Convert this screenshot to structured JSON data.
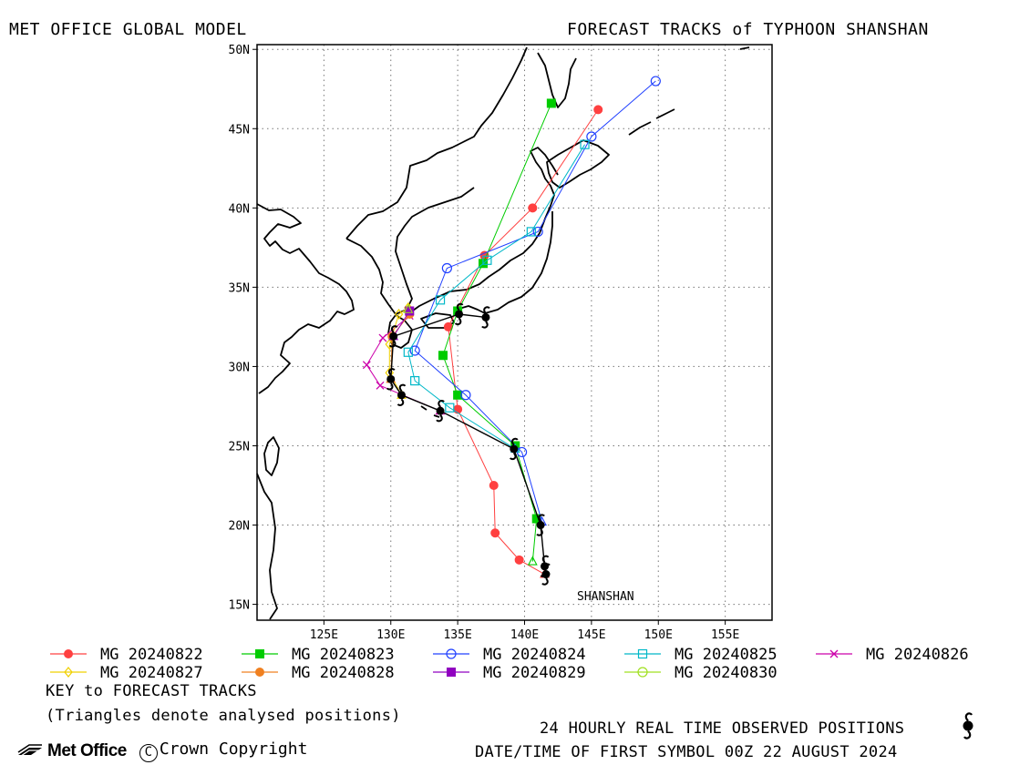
{
  "header": {
    "left": "MET OFFICE GLOBAL MODEL",
    "right": "FORECAST TRACKS of TYPHOON SHANSHAN"
  },
  "storm_label": "SHANSHAN",
  "axes": {
    "lon_range": [
      120,
      158.5
    ],
    "lat_range": [
      14,
      50.3
    ],
    "lon_ticks": [
      "125E",
      "130E",
      "135E",
      "140E",
      "145E",
      "150E",
      "155E"
    ],
    "lat_ticks": [
      "15N",
      "20N",
      "25N",
      "30N",
      "35N",
      "40N",
      "45N",
      "50N"
    ],
    "grid": true
  },
  "legend": {
    "items": [
      {
        "label": "MG 20240822",
        "color": "#ff4040",
        "marker": "filled-circle"
      },
      {
        "label": "MG 20240823",
        "color": "#00cc00",
        "marker": "filled-square"
      },
      {
        "label": "MG 20240824",
        "color": "#2040ff",
        "marker": "open-circle"
      },
      {
        "label": "MG 20240825",
        "color": "#00b8c8",
        "marker": "open-square"
      },
      {
        "label": "MG 20240826",
        "color": "#cc00aa",
        "marker": "cross"
      },
      {
        "label": "MG 20240827",
        "color": "#f0d000",
        "marker": "open-diamond"
      },
      {
        "label": "MG 20240828",
        "color": "#f08020",
        "marker": "filled-circle"
      },
      {
        "label": "MG 20240829",
        "color": "#9000c0",
        "marker": "filled-square"
      },
      {
        "label": "MG 20240830",
        "color": "#a0e020",
        "marker": "open-circle"
      }
    ],
    "key_title": "KEY to FORECAST TRACKS",
    "key_note": "(Triangles denote analysed positions)"
  },
  "footer": {
    "observed": "24 HOURLY REAL TIME OBSERVED POSITIONS",
    "first_symbol": "DATE/TIME OF FIRST SYMBOL 00Z 22 AUGUST 2024",
    "logo": "Met Office",
    "copyright": "Crown Copyright"
  },
  "chart_data": {
    "type": "scatter",
    "title": "FORECAST TRACKS of TYPHOON SHANSHAN",
    "x_unit": "longitude (deg E)",
    "y_unit": "latitude (deg N)",
    "observed_track": [
      [
        141.6,
        16.9
      ],
      [
        141.5,
        17.4
      ],
      [
        141.2,
        20.0
      ],
      [
        139.2,
        24.8
      ],
      [
        133.7,
        27.2
      ],
      [
        130.8,
        28.2
      ],
      [
        130.0,
        29.2
      ],
      [
        130.2,
        31.9
      ],
      [
        135.1,
        33.3
      ],
      [
        137.1,
        33.1
      ]
    ],
    "series": [
      {
        "name": "MG 20240822",
        "points": [
          [
            141.5,
            16.9
          ],
          [
            139.6,
            17.8
          ],
          [
            137.8,
            19.5
          ],
          [
            137.7,
            22.5
          ],
          [
            135.0,
            27.3
          ],
          [
            134.3,
            32.5
          ],
          [
            137.0,
            37.0
          ],
          [
            140.6,
            40.0
          ],
          [
            145.5,
            46.2
          ]
        ]
      },
      {
        "name": "MG 20240823",
        "points": [
          [
            140.6,
            17.7
          ],
          [
            140.9,
            20.4
          ],
          [
            139.3,
            25.0
          ],
          [
            135.0,
            28.2
          ],
          [
            133.9,
            30.7
          ],
          [
            135.0,
            33.5
          ],
          [
            136.9,
            36.5
          ],
          [
            142.0,
            46.6
          ]
        ]
      },
      {
        "name": "MG 20240824",
        "points": [
          [
            141.3,
            20.2
          ],
          [
            139.8,
            24.6
          ],
          [
            135.6,
            28.2
          ],
          [
            131.8,
            31.0
          ],
          [
            134.2,
            36.2
          ],
          [
            141.0,
            38.5
          ],
          [
            145.0,
            44.5
          ],
          [
            149.8,
            48.0
          ]
        ]
      },
      {
        "name": "MG 20240825",
        "points": [
          [
            139.3,
            24.8
          ],
          [
            134.4,
            27.4
          ],
          [
            131.8,
            29.1
          ],
          [
            131.3,
            30.9
          ],
          [
            133.7,
            34.2
          ],
          [
            137.2,
            36.7
          ],
          [
            140.5,
            38.5
          ],
          [
            144.5,
            44.0
          ]
        ]
      },
      {
        "name": "MG 20240826",
        "points": [
          [
            133.7,
            27.2
          ],
          [
            129.2,
            28.8
          ],
          [
            128.2,
            30.1
          ],
          [
            129.4,
            31.8
          ],
          [
            131.4,
            33.2
          ]
        ]
      },
      {
        "name": "MG 20240827",
        "points": [
          [
            130.8,
            28.2
          ],
          [
            129.9,
            29.6
          ],
          [
            129.9,
            31.4
          ],
          [
            130.6,
            33.3
          ],
          [
            131.3,
            33.7
          ]
        ]
      },
      {
        "name": "MG 20240828",
        "points": [
          [
            130.0,
            29.2
          ],
          [
            130.1,
            31.9
          ],
          [
            131.4,
            33.3
          ]
        ]
      },
      {
        "name": "MG 20240829",
        "points": [
          [
            130.2,
            31.9
          ],
          [
            131.4,
            33.5
          ]
        ]
      },
      {
        "name": "MG 20240830",
        "points": [
          [
            131.3,
            33.6
          ]
        ]
      }
    ]
  }
}
